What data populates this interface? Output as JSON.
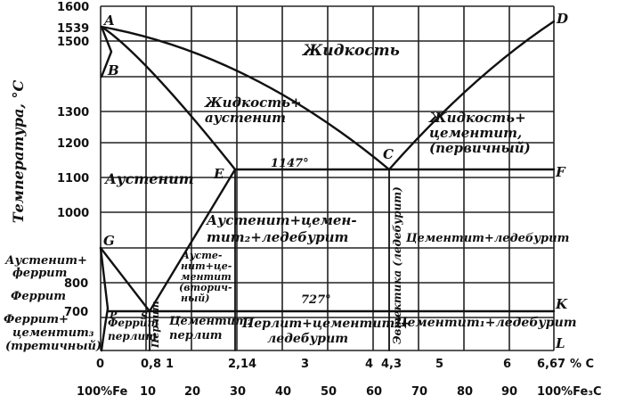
{
  "y_axis": {
    "title": "Температура, °С",
    "ticks": [
      "1600",
      "1539",
      "1500",
      "1300",
      "1200",
      "1100",
      "1000",
      "800",
      "700"
    ]
  },
  "x_axis_carbon": {
    "ticks": [
      "0",
      "0,8",
      "1",
      "2,14",
      "3",
      "4",
      "4,3",
      "5",
      "6",
      "6,67",
      "% С"
    ]
  },
  "x_axis_cementite": {
    "ticks": [
      "100%Fe",
      "10",
      "20",
      "30",
      "40",
      "50",
      "60",
      "70",
      "80",
      "90",
      "100%Fe₃С"
    ]
  },
  "points": {
    "A": "A",
    "B": "B",
    "C": "C",
    "D": "D",
    "E": "E",
    "F": "F",
    "G": "G",
    "K": "K",
    "L": "L",
    "P": "P",
    "S": "S"
  },
  "temperature_marks": {
    "t1147": "1147°",
    "t727": "727°"
  },
  "regions": {
    "liquid": "Жидкость",
    "liquid_austenite_1": "Жидкость+",
    "liquid_austenite_2": "аустенит",
    "liquid_cementite_1": "Жидкость+",
    "liquid_cementite_2": "цементит,",
    "liquid_cementite_3": "(первичный)",
    "austenite": "Аустенит",
    "aust_cem_led_1": "Аустенит+цемен-",
    "aust_cem_led_2": "тит₂+ледебурит",
    "aust_cem2_1": "Аусте-",
    "aust_cem2_2": "нит+це-",
    "aust_cem2_3": "ментит",
    "aust_cem2_4": "(вторич-",
    "aust_cem2_5": "ный)",
    "cem_ledeburite_upper": "Цементит+ледебурит",
    "cem_ledeburite_lower": "Цементит₁+ледебурит",
    "aust_ferrite_1": "Аустенит+",
    "aust_ferrite_2": "феррит",
    "ferrite": "Феррит",
    "ferrite_cem3_1": "Феррит+",
    "ferrite_cem3_2": "цементит₃",
    "ferrite_cem3_3": "(третичный)",
    "ferrite_pearlite_1": "Феррит",
    "ferrite_pearlite_2": "перлит",
    "pearlite": "Перлит",
    "cem2_pearlite_1": "Цементит₂",
    "cem2_pearlite_2": "перлит",
    "pearl_cem_led_1": "Перлит+цементит₂+",
    "pearl_cem_led_2": "ледебурит",
    "eutectic": "Эвтектика (ледебурит)"
  }
}
